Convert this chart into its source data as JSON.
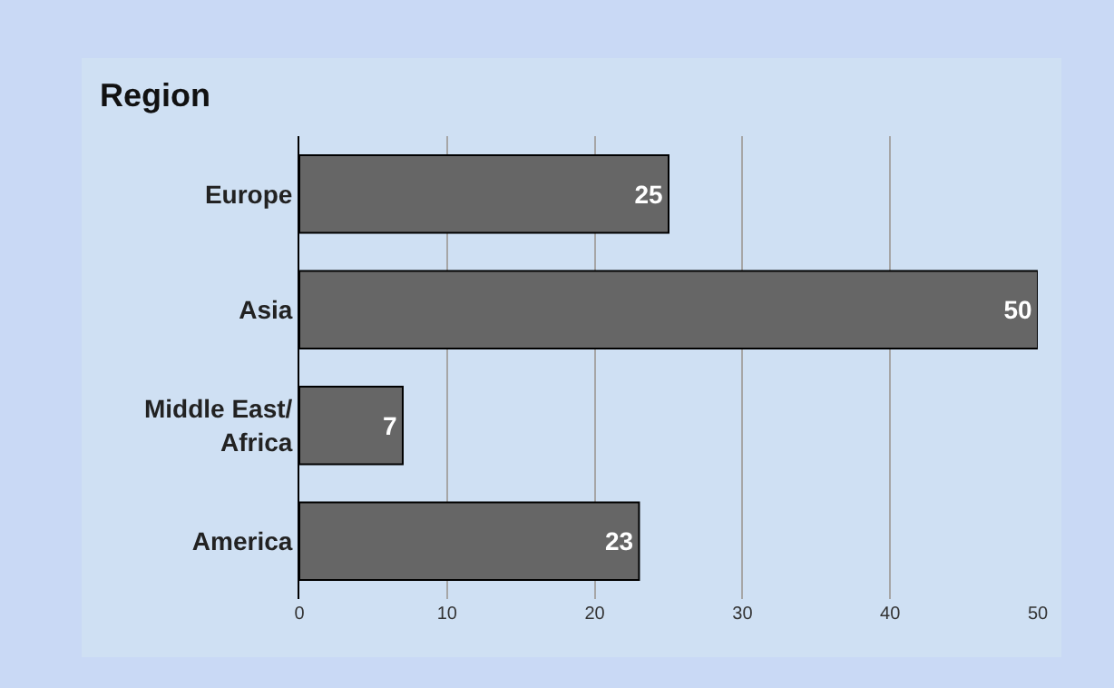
{
  "chart_data": {
    "type": "bar",
    "orientation": "horizontal",
    "title": "Region",
    "categories": [
      "Europe",
      "Asia",
      "Middle East/\nAfrica",
      "America"
    ],
    "values": [
      25,
      50,
      7,
      23
    ],
    "color": "#666666",
    "xlim": [
      0,
      50
    ],
    "xticks": [
      0,
      10,
      20,
      30,
      40,
      50
    ],
    "grid": "x",
    "data_labels": true
  }
}
